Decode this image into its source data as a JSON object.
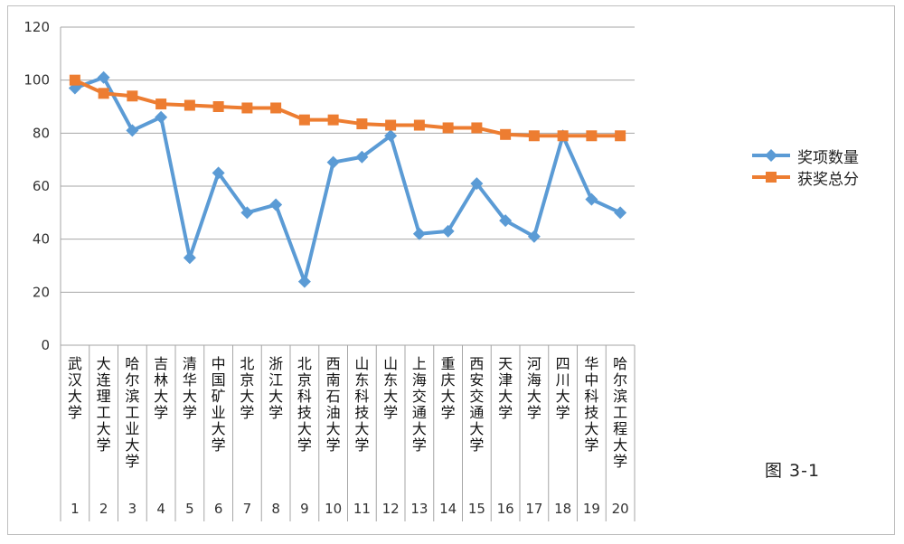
{
  "chart_data": {
    "type": "line",
    "categories": [
      "武汉大学",
      "大连理工大学",
      "哈尔滨工业大学",
      "吉林大学",
      "清华大学",
      "中国矿业大学",
      "北京大学",
      "浙江大学",
      "北京科技大学",
      "西南石油大学",
      "山东科技大学",
      "山东大学",
      "上海交通大学",
      "重庆大学",
      "西安交通大学",
      "天津大学",
      "河海大学",
      "四川大学",
      "华中科技大学",
      "哈尔滨工程大学"
    ],
    "ranks": [
      "1",
      "2",
      "3",
      "4",
      "5",
      "6",
      "7",
      "8",
      "9",
      "10",
      "11",
      "12",
      "13",
      "14",
      "15",
      "16",
      "17",
      "18",
      "19",
      "20"
    ],
    "series": [
      {
        "name": "奖项数量",
        "color": "#5b9bd5",
        "marker": "diamond",
        "values": [
          97,
          101,
          81,
          86,
          33,
          65,
          50,
          53,
          24,
          69,
          71,
          79,
          42,
          43,
          61,
          47,
          41,
          79,
          55,
          50
        ]
      },
      {
        "name": "获奖总分",
        "color": "#ed7d31",
        "marker": "square",
        "values": [
          100,
          95,
          94,
          91,
          90.5,
          90,
          89.5,
          89.5,
          85,
          85,
          83.5,
          83,
          83,
          82,
          82,
          79.5,
          79,
          79,
          79,
          79
        ]
      }
    ],
    "ylim": [
      0,
      120
    ],
    "yticks": [
      0,
      20,
      40,
      60,
      80,
      100,
      120
    ],
    "grid": true,
    "legend": "right",
    "title": "",
    "xlabel": "",
    "ylabel": ""
  },
  "caption": "图 3-1"
}
